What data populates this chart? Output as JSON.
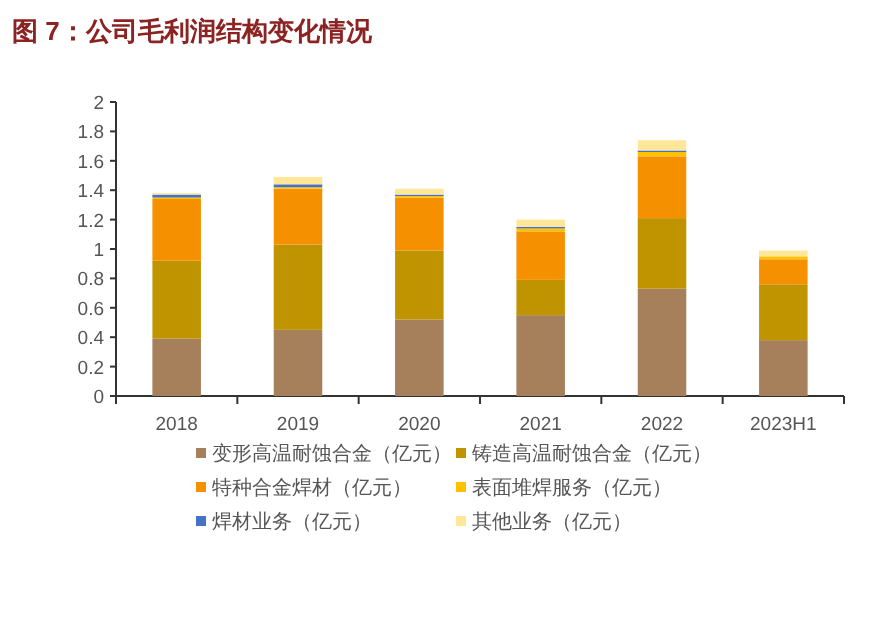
{
  "chart_data": {
    "type": "bar",
    "title": "图 7：公司毛利润结构变化情况",
    "stacked": true,
    "categories": [
      "2018",
      "2019",
      "2020",
      "2021",
      "2022",
      "2023H1"
    ],
    "series": [
      {
        "name": "变形高温耐蚀合金（亿元）",
        "color": "#a67f5b",
        "values": [
          0.39,
          0.45,
          0.52,
          0.55,
          0.73,
          0.38
        ]
      },
      {
        "name": "铸造高温耐蚀合金（亿元）",
        "color": "#c09400",
        "values": [
          0.53,
          0.58,
          0.47,
          0.24,
          0.48,
          0.38
        ]
      },
      {
        "name": "特种合金焊材（亿元）",
        "color": "#f59100",
        "values": [
          0.42,
          0.38,
          0.36,
          0.33,
          0.42,
          0.17
        ]
      },
      {
        "name": "表面堆焊服务（亿元）",
        "color": "#ffc000",
        "values": [
          0.01,
          0.01,
          0.01,
          0.02,
          0.03,
          0.02
        ]
      },
      {
        "name": "焊材业务（亿元）",
        "color": "#4472c4",
        "values": [
          0.02,
          0.02,
          0.01,
          0.01,
          0.01,
          0
        ]
      },
      {
        "name": "其他业务（亿元）",
        "color": "#ffe699",
        "values": [
          0.01,
          0.05,
          0.04,
          0.05,
          0.07,
          0.04
        ]
      }
    ],
    "ylim": [
      0,
      2
    ],
    "yticks": [
      0,
      0.2,
      0.4,
      0.6,
      0.8,
      1,
      1.2,
      1.4,
      1.6,
      1.8,
      2
    ],
    "grid": false,
    "legend": "bottom"
  }
}
